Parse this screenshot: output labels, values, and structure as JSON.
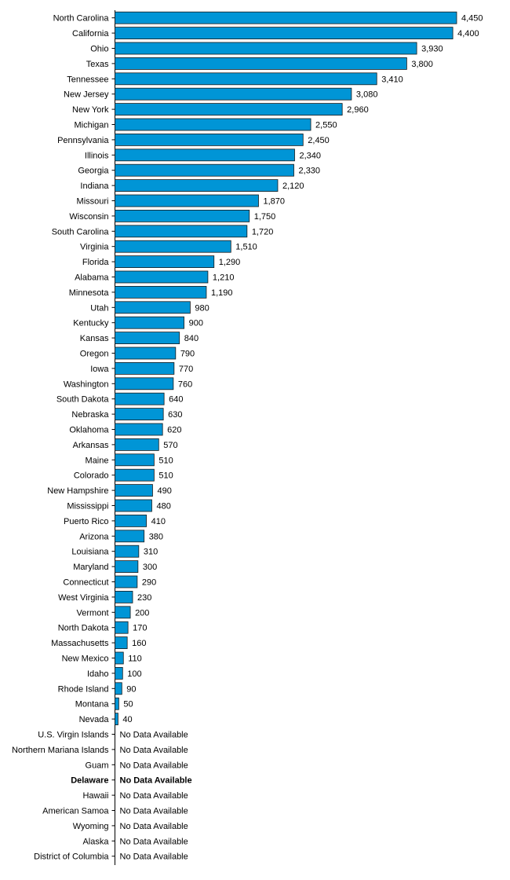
{
  "chart_data": {
    "type": "bar",
    "orientation": "horizontal",
    "colors": {
      "bar": "#0095d6",
      "bar_stroke": "#1a1a1a",
      "axis": "#000000"
    },
    "grid": false,
    "legend": "none",
    "xlim": [
      0,
      4450
    ],
    "categories": [
      "North Carolina",
      "California",
      "Ohio",
      "Texas",
      "Tennessee",
      "New Jersey",
      "New York",
      "Michigan",
      "Pennsylvania",
      "Illinois",
      "Georgia",
      "Indiana",
      "Missouri",
      "Wisconsin",
      "South Carolina",
      "Virginia",
      "Florida",
      "Alabama",
      "Minnesota",
      "Utah",
      "Kentucky",
      "Kansas",
      "Oregon",
      "Iowa",
      "Washington",
      "South Dakota",
      "Nebraska",
      "Oklahoma",
      "Arkansas",
      "Maine",
      "Colorado",
      "New Hampshire",
      "Mississippi",
      "Puerto Rico",
      "Arizona",
      "Louisiana",
      "Maryland",
      "Connecticut",
      "West Virginia",
      "Vermont",
      "North Dakota",
      "Massachusetts",
      "New Mexico",
      "Idaho",
      "Rhode Island",
      "Montana",
      "Nevada",
      "U.S. Virgin Islands",
      "Northern Mariana Islands",
      "Guam",
      "Delaware",
      "Hawaii",
      "American Samoa",
      "Wyoming",
      "Alaska",
      "District of Columbia"
    ],
    "values": [
      4450,
      4400,
      3930,
      3800,
      3410,
      3080,
      2960,
      2550,
      2450,
      2340,
      2330,
      2120,
      1870,
      1750,
      1720,
      1510,
      1290,
      1210,
      1190,
      980,
      900,
      840,
      790,
      770,
      760,
      640,
      630,
      620,
      570,
      510,
      510,
      490,
      480,
      410,
      380,
      310,
      300,
      290,
      230,
      200,
      170,
      160,
      110,
      100,
      90,
      50,
      40,
      null,
      null,
      null,
      null,
      null,
      null,
      null,
      null,
      null
    ],
    "value_labels": [
      "4,450",
      "4,400",
      "3,930",
      "3,800",
      "3,410",
      "3,080",
      "2,960",
      "2,550",
      "2,450",
      "2,340",
      "2,330",
      "2,120",
      "1,870",
      "1,750",
      "1,720",
      "1,510",
      "1,290",
      "1,210",
      "1,190",
      "980",
      "900",
      "840",
      "790",
      "770",
      "760",
      "640",
      "630",
      "620",
      "570",
      "510",
      "510",
      "490",
      "480",
      "410",
      "380",
      "310",
      "300",
      "290",
      "230",
      "200",
      "170",
      "160",
      "110",
      "100",
      "90",
      "50",
      "40",
      "No Data Available",
      "No Data Available",
      "No Data Available",
      "No Data Available",
      "No Data Available",
      "No Data Available",
      "No Data Available",
      "No Data Available",
      "No Data Available"
    ],
    "highlighted": [
      "Delaware"
    ]
  }
}
